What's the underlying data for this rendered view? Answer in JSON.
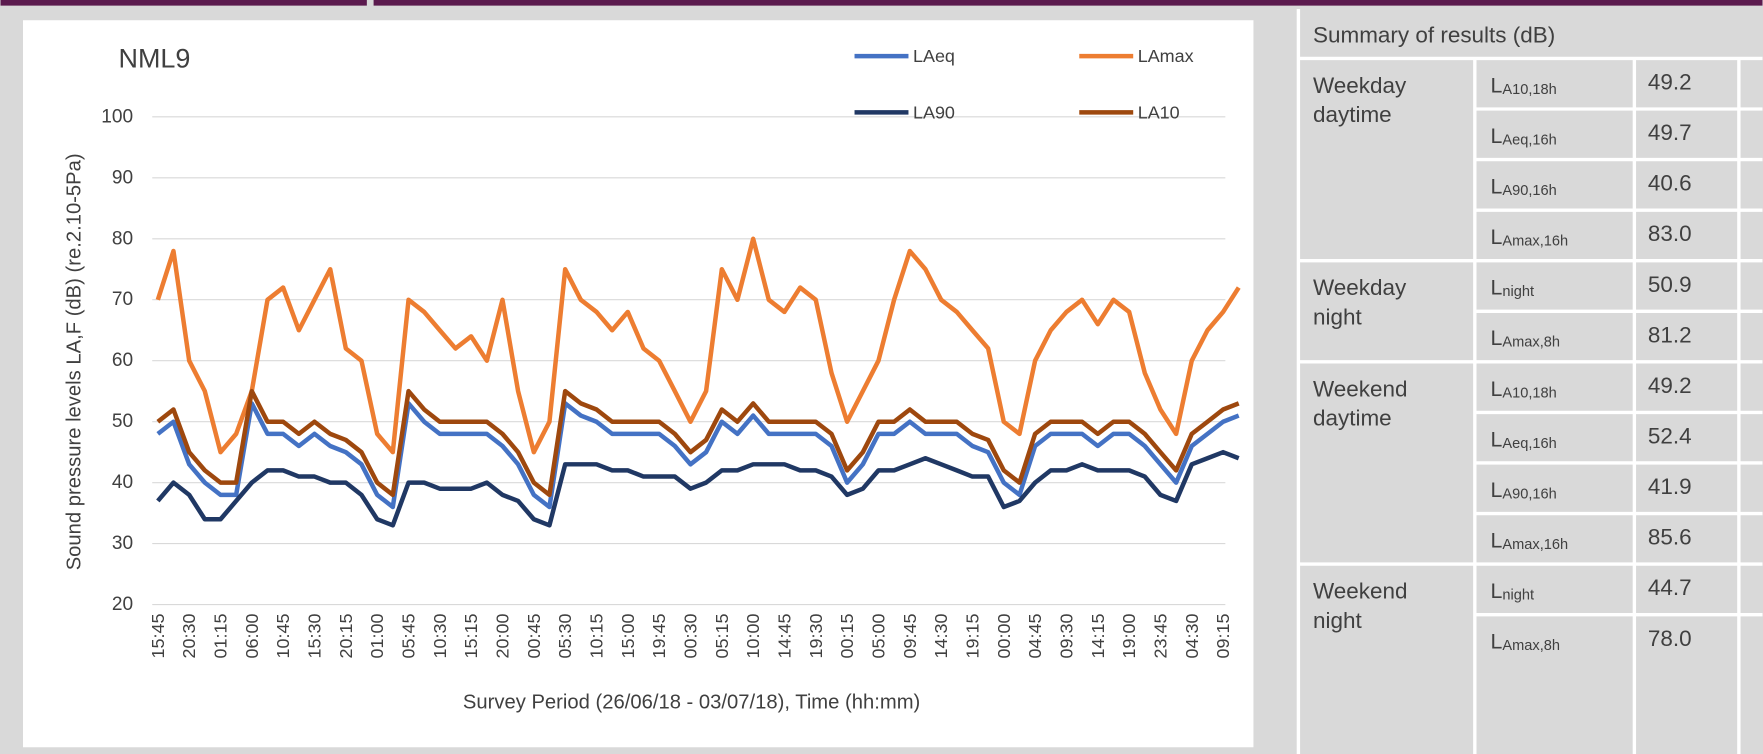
{
  "chart_data": {
    "type": "line",
    "title": "NML9",
    "y_label": "Sound pressure levels  LA,F (dB) (re.2.10-5Pa)",
    "x_label": "Survey Period (26/06/18 -  03/07/18), Time (hh:mm)",
    "categories": [
      "15:45",
      null,
      "20:30",
      null,
      "01:15",
      null,
      "06:00",
      null,
      "10:45",
      null,
      "15:30",
      null,
      "20:15",
      null,
      "01:00",
      null,
      "05:45",
      null,
      "10:30",
      null,
      "15:15",
      null,
      "20:00",
      null,
      "00:45",
      null,
      "05:30",
      null,
      "10:15",
      null,
      "15:00",
      null,
      "19:45",
      null,
      "00:30",
      null,
      "05:15",
      null,
      "10:00",
      null,
      "14:45",
      null,
      "19:30",
      null,
      "00:15",
      null,
      "05:00",
      null,
      "09:45",
      null,
      "14:30",
      null,
      "19:15",
      null,
      "00:00",
      null,
      "04:45",
      null,
      "09:30",
      null,
      "14:15",
      null,
      "19:00",
      null,
      "23:45",
      null,
      "04:30",
      null,
      "09:15",
      null
    ],
    "series": [
      {
        "name": "LAeq",
        "color": "#4472c4",
        "values": [
          48,
          50,
          43,
          40,
          38,
          38,
          53,
          48,
          48,
          46,
          48,
          46,
          45,
          43,
          38,
          36,
          53,
          50,
          48,
          48,
          48,
          48,
          46,
          43,
          38,
          36,
          53,
          51,
          50,
          48,
          48,
          48,
          48,
          46,
          43,
          45,
          50,
          48,
          51,
          48,
          48,
          48,
          48,
          46,
          40,
          43,
          48,
          48,
          50,
          48,
          48,
          48,
          46,
          45,
          40,
          38,
          46,
          48,
          48,
          48,
          46,
          48,
          48,
          46,
          43,
          40,
          46,
          48,
          50,
          51
        ]
      },
      {
        "name": "LAmax",
        "color": "#ed7d31",
        "values": [
          70,
          78,
          60,
          55,
          45,
          48,
          55,
          70,
          72,
          65,
          70,
          75,
          62,
          60,
          48,
          45,
          70,
          68,
          65,
          62,
          64,
          60,
          70,
          55,
          45,
          50,
          75,
          70,
          68,
          65,
          68,
          62,
          60,
          55,
          50,
          55,
          75,
          70,
          80,
          70,
          68,
          72,
          70,
          58,
          50,
          55,
          60,
          70,
          78,
          75,
          70,
          68,
          65,
          62,
          50,
          48,
          60,
          65,
          68,
          70,
          66,
          70,
          68,
          58,
          52,
          48,
          60,
          65,
          68,
          72
        ]
      },
      {
        "name": "LA90",
        "color": "#203864",
        "values": [
          37,
          40,
          38,
          34,
          34,
          37,
          40,
          42,
          42,
          41,
          41,
          40,
          40,
          38,
          34,
          33,
          40,
          40,
          39,
          39,
          39,
          40,
          38,
          37,
          34,
          33,
          43,
          43,
          43,
          42,
          42,
          41,
          41,
          41,
          39,
          40,
          42,
          42,
          43,
          43,
          43,
          42,
          42,
          41,
          38,
          39,
          42,
          42,
          43,
          44,
          43,
          42,
          41,
          41,
          36,
          37,
          40,
          42,
          42,
          43,
          42,
          42,
          42,
          41,
          38,
          37,
          43,
          44,
          45,
          44
        ]
      },
      {
        "name": "LA10",
        "color": "#9e480e",
        "values": [
          50,
          52,
          45,
          42,
          40,
          40,
          55,
          50,
          50,
          48,
          50,
          48,
          47,
          45,
          40,
          38,
          55,
          52,
          50,
          50,
          50,
          50,
          48,
          45,
          40,
          38,
          55,
          53,
          52,
          50,
          50,
          50,
          50,
          48,
          45,
          47,
          52,
          50,
          53,
          50,
          50,
          50,
          50,
          48,
          42,
          45,
          50,
          50,
          52,
          50,
          50,
          50,
          48,
          47,
          42,
          40,
          48,
          50,
          50,
          50,
          48,
          50,
          50,
          48,
          45,
          42,
          48,
          50,
          52,
          53
        ]
      }
    ],
    "ylim": [
      20,
      100
    ],
    "yticks": [
      20,
      30,
      40,
      50,
      60,
      70,
      80,
      90,
      100
    ],
    "grid": true,
    "legend": "top-right"
  },
  "table": {
    "title": "Summary of results (dB)",
    "groups": [
      {
        "name": [
          "Weekday",
          "daytime"
        ],
        "rows": [
          {
            "label": "L",
            "sub": "A10,18h",
            "value": "49.2"
          },
          {
            "label": "L",
            "sub": "Aeq,16h",
            "value": "49.7"
          },
          {
            "label": "L",
            "sub": "A90,16h",
            "value": "40.6"
          },
          {
            "label": "L",
            "sub": "Amax,16h",
            "value": "83.0"
          }
        ]
      },
      {
        "name": [
          "Weekday",
          "night"
        ],
        "rows": [
          {
            "label": "L",
            "sub": "night",
            "value": "50.9"
          },
          {
            "label": "L",
            "sub": "Amax,8h",
            "value": "81.2"
          }
        ]
      },
      {
        "name": [
          "Weekend",
          "daytime"
        ],
        "rows": [
          {
            "label": "L",
            "sub": "A10,18h",
            "value": "49.2"
          },
          {
            "label": "L",
            "sub": "Aeq,16h",
            "value": "52.4"
          },
          {
            "label": "L",
            "sub": "A90,16h",
            "value": "41.9"
          },
          {
            "label": "L",
            "sub": "Amax,16h",
            "value": "85.6"
          }
        ]
      },
      {
        "name": [
          "Weekend",
          "night"
        ],
        "rows": [
          {
            "label": "L",
            "sub": "night",
            "value": "44.7"
          },
          {
            "label": "L",
            "sub": "Amax,8h",
            "value": "78.0"
          }
        ]
      }
    ]
  }
}
